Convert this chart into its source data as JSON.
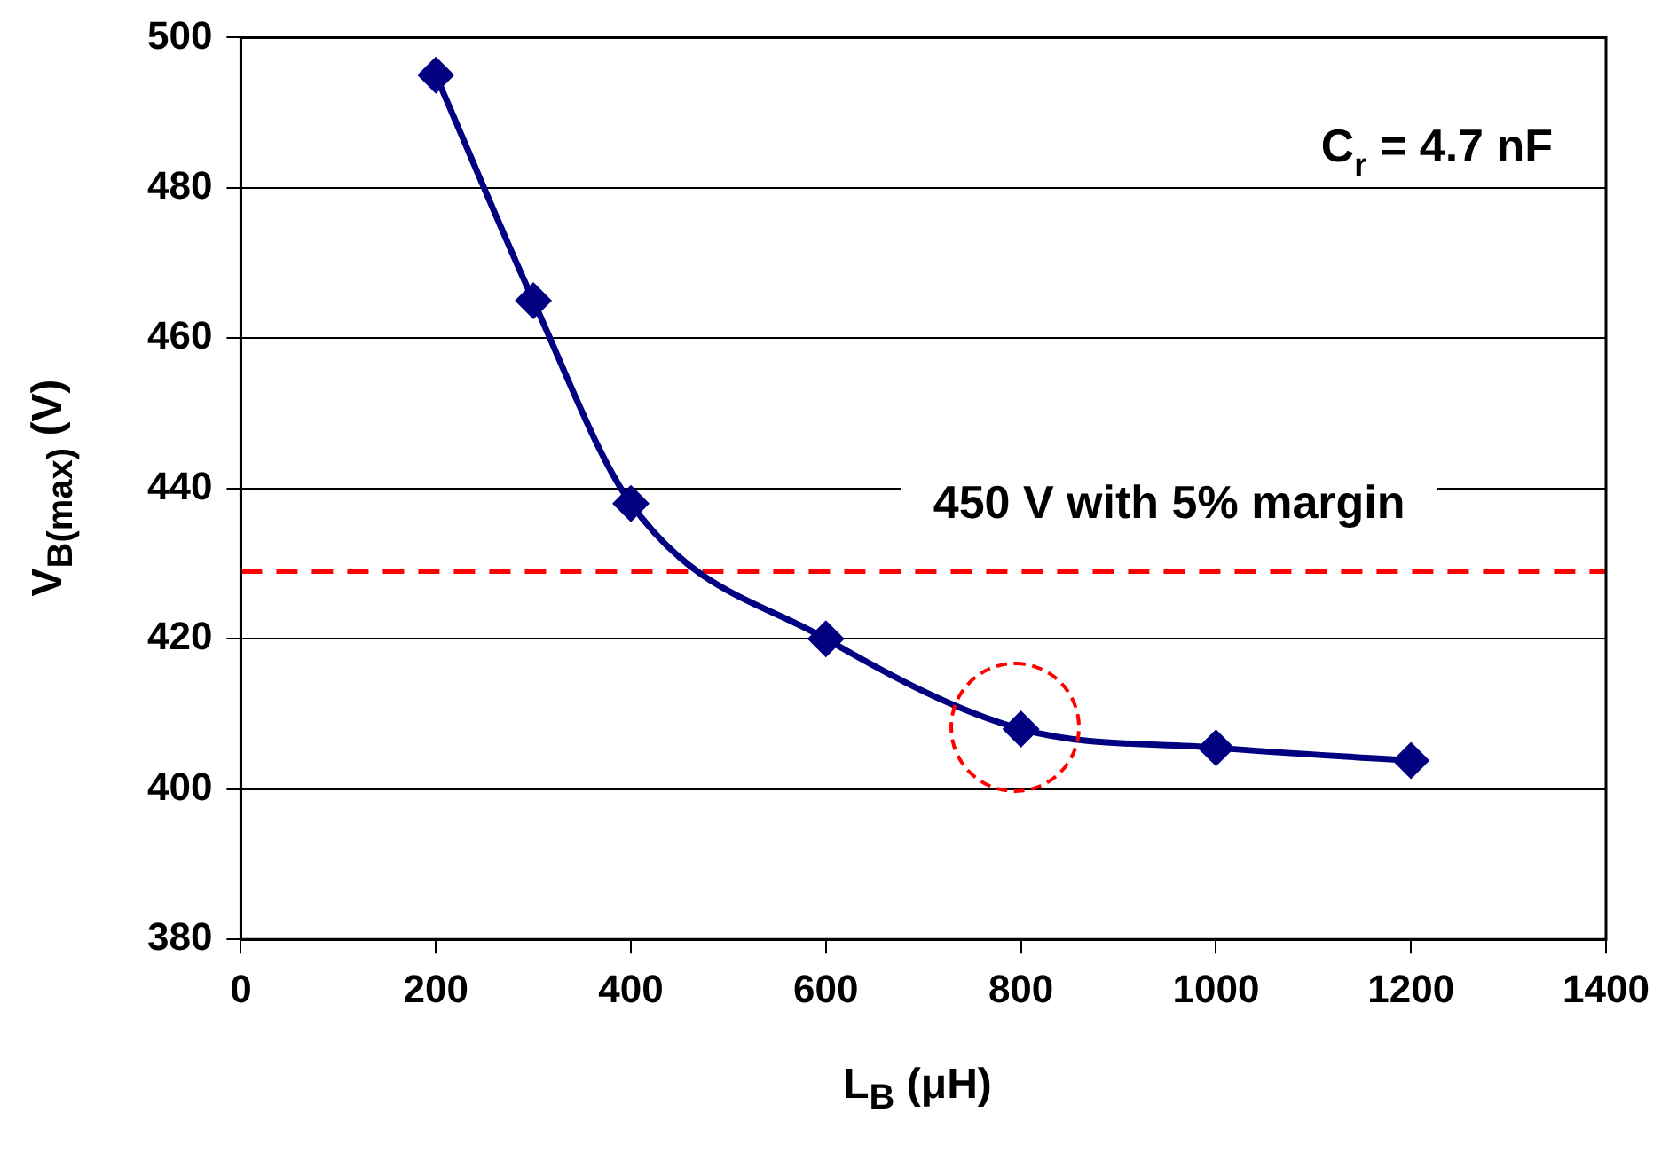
{
  "chart_data": {
    "type": "line",
    "xlabel": "L$_{B}$ (μH)",
    "ylabel": "V$_{B(max)}$ (V)",
    "x": [
      200,
      300,
      400,
      600,
      800,
      1000,
      1200
    ],
    "series": [
      {
        "color": "#000080",
        "values": [
          495,
          465,
          438,
          420,
          408,
          405.5,
          403.8
        ]
      }
    ],
    "xlim": [
      0,
      1400
    ],
    "xticks": [
      0,
      200,
      400,
      600,
      800,
      1000,
      1200,
      1400
    ],
    "ylim": [
      380,
      500
    ],
    "yticks": [
      380,
      400,
      420,
      440,
      460,
      480,
      500
    ],
    "grid": "y",
    "legend": false,
    "marker": "diamond",
    "line_style": "solid",
    "ref_lines": [
      {
        "axis": "y",
        "value": 429,
        "label": "450 V with 5% margin",
        "color": "#ff0000",
        "line_style": "dashed"
      }
    ],
    "annotations": [
      "C$_{r}$ = 4.7 nF"
    ]
  }
}
